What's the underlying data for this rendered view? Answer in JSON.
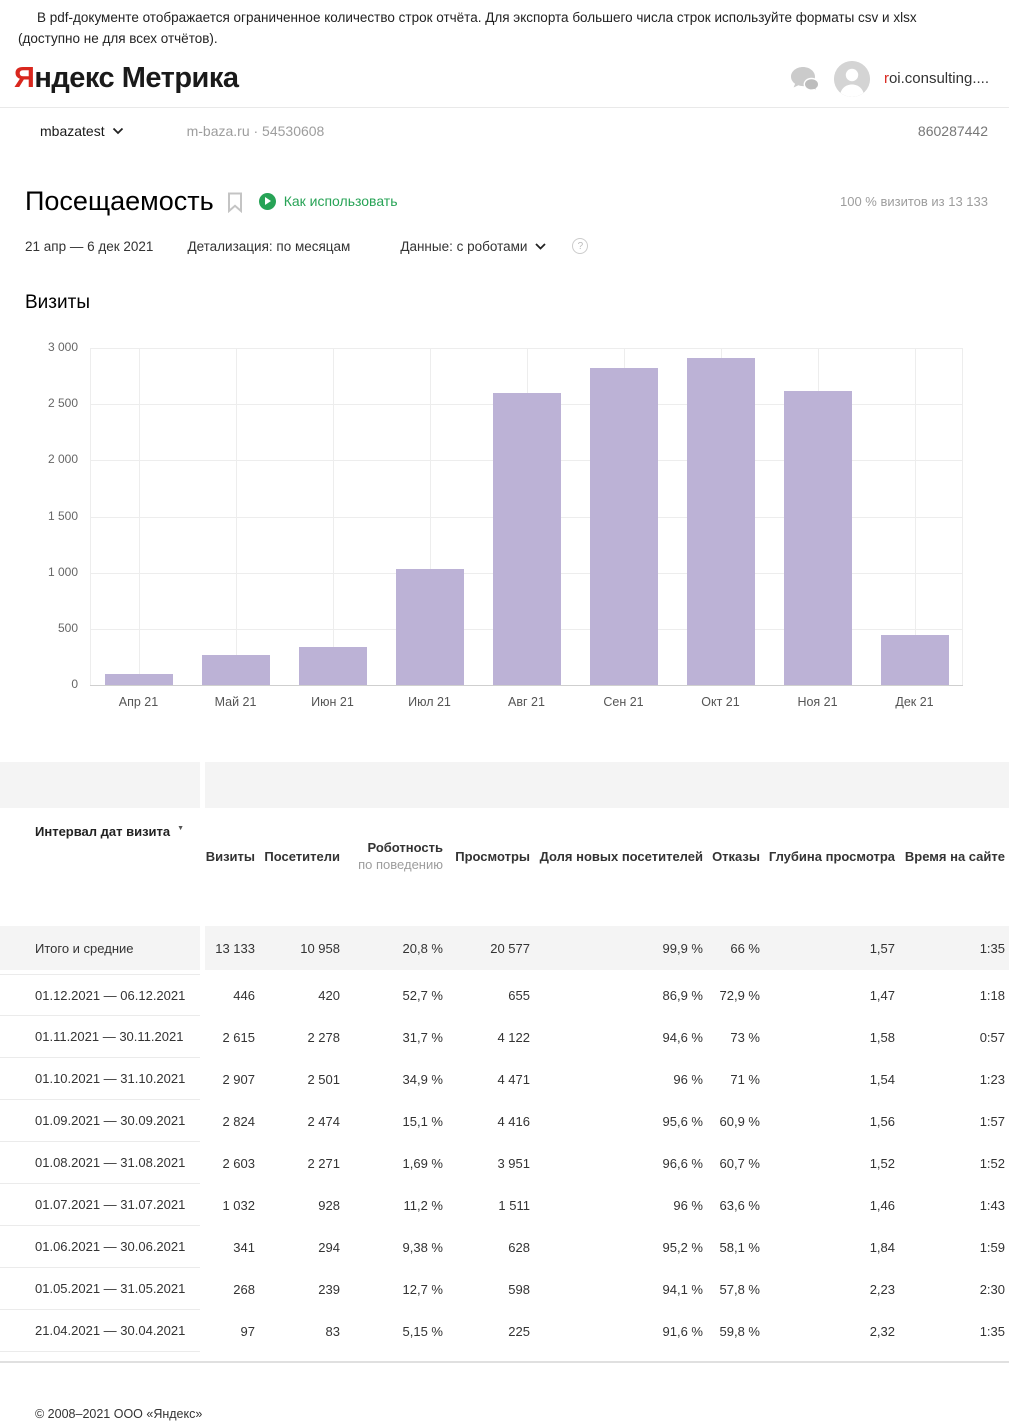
{
  "notice": {
    "text": "В pdf-документе отображается ограниченное количество строк отчёта. Для экспорта большего числа строк используйте форматы csv и xlsx (доступно не для всех отчётов)."
  },
  "header": {
    "logo": {
      "accent": "Я",
      "brand_rest": "ндекс",
      "product": " Метрика"
    },
    "user": {
      "name_accent": "r",
      "name_rest": "oi.consulting...."
    }
  },
  "subheader": {
    "counter_name": "mbazatest",
    "site": "m-baza.ru · 54530608",
    "right_id": "860287442"
  },
  "report": {
    "title": "Посещаемость",
    "howto_label": "Как использовать",
    "sampling": "100 % визитов из 13 133",
    "date_range": "21 апр — 6 дек 2021",
    "detalization": "Детализация: по месяцам",
    "data_mode": "Данные: с роботами",
    "help_glyph": "?"
  },
  "chart_data": {
    "type": "bar",
    "title": "Визиты",
    "categories": [
      "Апр 21",
      "Май 21",
      "Июн 21",
      "Июл 21",
      "Авг 21",
      "Сен 21",
      "Окт 21",
      "Ноя 21",
      "Дек 21"
    ],
    "values": [
      97,
      268,
      341,
      1032,
      2603,
      2824,
      2907,
      2615,
      446
    ],
    "ylim": [
      0,
      3000
    ],
    "yticks": [
      0,
      500,
      1000,
      1500,
      2000,
      2500,
      3000
    ],
    "ytick_labels": [
      "0",
      "500",
      "1 000",
      "1 500",
      "2 000",
      "2 500",
      "3 000"
    ],
    "bar_color": "#bcb2d6",
    "grid": true,
    "legend": "none"
  },
  "table": {
    "row_header": "Интервал дат визита",
    "columns": [
      {
        "label": "Визиты"
      },
      {
        "label": "Посетители"
      },
      {
        "label": "Роботность",
        "sub": "по поведению"
      },
      {
        "label": "Просмотры"
      },
      {
        "label": "Доля новых посетителей"
      },
      {
        "label": "Отказы"
      },
      {
        "label": "Глубина просмотра"
      },
      {
        "label": "Время на сайте"
      }
    ],
    "totals": {
      "label": "Итого и средние",
      "values": [
        "13 133",
        "10 958",
        "20,8 %",
        "20 577",
        "99,9 %",
        "66 %",
        "1,57",
        "1:35"
      ]
    },
    "rows": [
      {
        "label": "01.12.2021 — 06.12.2021",
        "values": [
          "446",
          "420",
          "52,7 %",
          "655",
          "86,9 %",
          "72,9 %",
          "1,47",
          "1:18"
        ]
      },
      {
        "label": "01.11.2021 — 30.11.2021",
        "values": [
          "2 615",
          "2 278",
          "31,7 %",
          "4 122",
          "94,6 %",
          "73 %",
          "1,58",
          "0:57"
        ]
      },
      {
        "label": "01.10.2021 — 31.10.2021",
        "values": [
          "2 907",
          "2 501",
          "34,9 %",
          "4 471",
          "96 %",
          "71 %",
          "1,54",
          "1:23"
        ]
      },
      {
        "label": "01.09.2021 — 30.09.2021",
        "values": [
          "2 824",
          "2 474",
          "15,1 %",
          "4 416",
          "95,6 %",
          "60,9 %",
          "1,56",
          "1:57"
        ]
      },
      {
        "label": "01.08.2021 — 31.08.2021",
        "values": [
          "2 603",
          "2 271",
          "1,69 %",
          "3 951",
          "96,6 %",
          "60,7 %",
          "1,52",
          "1:52"
        ]
      },
      {
        "label": "01.07.2021 — 31.07.2021",
        "values": [
          "1 032",
          "928",
          "11,2 %",
          "1 511",
          "96 %",
          "63,6 %",
          "1,46",
          "1:43"
        ]
      },
      {
        "label": "01.06.2021 — 30.06.2021",
        "values": [
          "341",
          "294",
          "9,38 %",
          "628",
          "95,2 %",
          "58,1 %",
          "1,84",
          "1:59"
        ]
      },
      {
        "label": "01.05.2021 — 31.05.2021",
        "values": [
          "268",
          "239",
          "12,7 %",
          "598",
          "94,1 %",
          "57,8 %",
          "2,23",
          "2:30"
        ]
      },
      {
        "label": "21.04.2021 — 30.04.2021",
        "values": [
          "97",
          "83",
          "5,15 %",
          "225",
          "91,6 %",
          "59,8 %",
          "2,32",
          "1:35"
        ]
      }
    ]
  },
  "footer": {
    "copyright": "© 2008–2021 ООО «Яндекс»"
  },
  "colors": {
    "logo_red": "#d9271e",
    "link_green": "#27a356",
    "bar_purple": "#bcb2d6"
  }
}
